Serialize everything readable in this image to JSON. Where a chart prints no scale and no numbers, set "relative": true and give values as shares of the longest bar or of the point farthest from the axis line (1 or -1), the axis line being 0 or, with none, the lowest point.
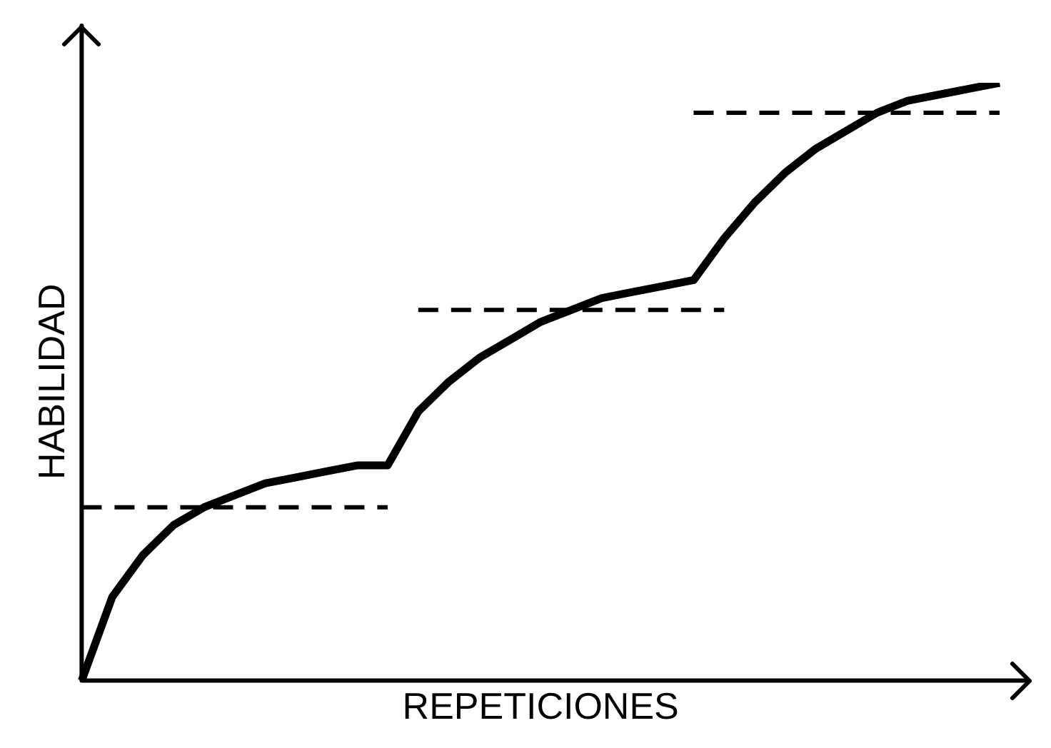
{
  "chart_data": {
    "type": "line",
    "relative": true,
    "xlabel": "REPETICIONES",
    "ylabel": "HABILIDAD",
    "grid": false,
    "legend": false,
    "tick_labels": false,
    "marker": "none",
    "categories": [
      null,
      null,
      null,
      null,
      null,
      null,
      null,
      null,
      null,
      null,
      null,
      null,
      null,
      null,
      null,
      null,
      null,
      null,
      null,
      null,
      null,
      null,
      null,
      null,
      null,
      null,
      null,
      null,
      null,
      null,
      null
    ],
    "series": [
      {
        "color": "#000000",
        "line_style": "solid",
        "values": [
          0,
          0.14,
          0.21,
          0.26,
          0.29,
          0.31,
          0.33,
          0.34,
          0.35,
          0.36,
          0.36,
          0.45,
          0.5,
          0.54,
          0.57,
          0.6,
          0.62,
          0.64,
          0.65,
          0.66,
          0.67,
          0.74,
          0.8,
          0.85,
          0.89,
          0.92,
          0.95,
          0.97,
          0.98,
          0.99,
          1
        ]
      },
      {
        "color": "#000000",
        "line_style": "dashed",
        "values": [
          0.29,
          0.29,
          0.29,
          0.29,
          0.29,
          0.29,
          0.29,
          0.29,
          0.29,
          0.29,
          0.29,
          null,
          null,
          null,
          null,
          null,
          null,
          null,
          null,
          null,
          null,
          null,
          null,
          null,
          null,
          null,
          null,
          null,
          null,
          null,
          null
        ]
      },
      {
        "color": "#000000",
        "line_style": "dashed",
        "values": [
          null,
          null,
          null,
          null,
          null,
          null,
          null,
          null,
          null,
          null,
          null,
          0.62,
          0.62,
          0.62,
          0.62,
          0.62,
          0.62,
          0.62,
          0.62,
          0.62,
          0.62,
          0.62,
          null,
          null,
          null,
          null,
          null,
          null,
          null,
          null,
          null
        ]
      },
      {
        "color": "#000000",
        "line_style": "dashed",
        "values": [
          null,
          null,
          null,
          null,
          null,
          null,
          null,
          null,
          null,
          null,
          null,
          null,
          null,
          null,
          null,
          null,
          null,
          null,
          null,
          null,
          0.95,
          0.95,
          0.95,
          0.95,
          0.95,
          0.95,
          0.95,
          0.95,
          0.95,
          0.95,
          0.95
        ]
      }
    ]
  }
}
